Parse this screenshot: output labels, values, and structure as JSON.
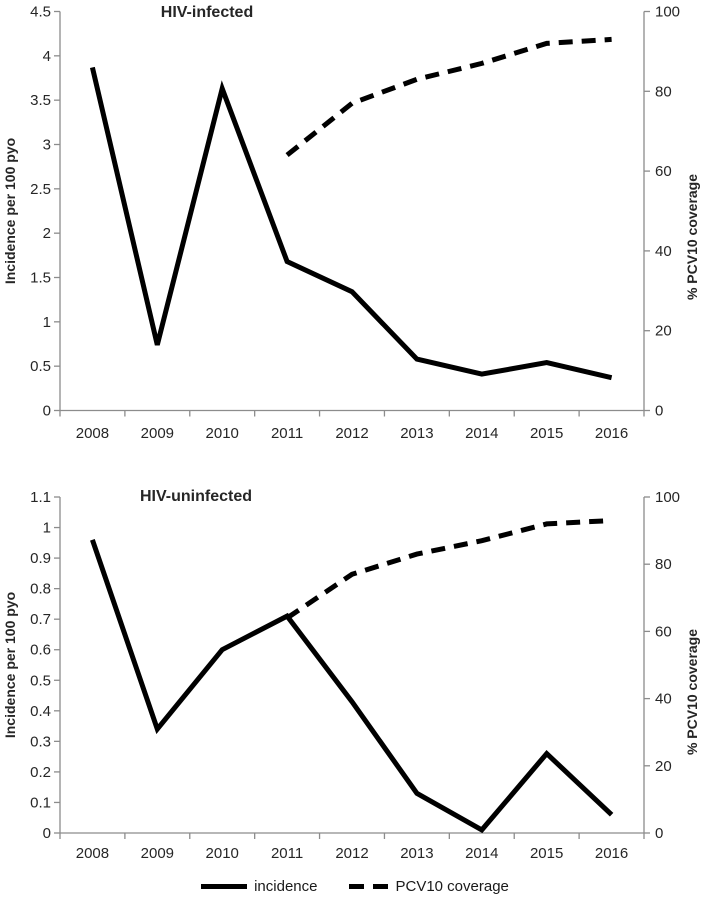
{
  "colors": {
    "series_line": "#000000",
    "axis_line": "#8c8c8c",
    "tick_text": "#262626",
    "background": "#ffffff"
  },
  "legend": {
    "items": [
      {
        "label": "incidence",
        "style": "solid"
      },
      {
        "label": "PCV10 coverage",
        "style": "dashed"
      }
    ]
  },
  "chart_data": [
    {
      "type": "line",
      "title": "HIV-infected",
      "ylabel": "Incidence per 100 pyo",
      "y2label": "% PCV10 coverage",
      "x_categories": [
        "2008",
        "2009",
        "2010",
        "2011",
        "2012",
        "2013",
        "2014",
        "2015",
        "2016"
      ],
      "y_axis": {
        "min": 0,
        "max": 4.5,
        "step": 0.5,
        "tick_labels": [
          "4.5",
          "4",
          "3.5",
          "3",
          "2.5",
          "2",
          "1.5",
          "1",
          "0.5",
          "0"
        ]
      },
      "y2_axis": {
        "min": 0,
        "max": 100,
        "step": 20,
        "tick_labels": [
          "100",
          "80",
          "60",
          "40",
          "20",
          "0"
        ]
      },
      "grid": false,
      "legend_position": "bottom-shared",
      "series": [
        {
          "name": "incidence",
          "axis": "y",
          "line": "solid",
          "values": [
            3.87,
            0.74,
            3.63,
            1.68,
            1.34,
            0.58,
            0.41,
            0.54,
            0.37
          ]
        },
        {
          "name": "PCV10 coverage",
          "axis": "y2",
          "line": "dashed",
          "values": [
            null,
            null,
            null,
            64,
            77,
            83,
            87,
            92,
            93
          ]
        }
      ]
    },
    {
      "type": "line",
      "title": "HIV-uninfected",
      "ylabel": "Incidence per 100 pyo",
      "y2label": "% PCV10 coverage",
      "x_categories": [
        "2008",
        "2009",
        "2010",
        "2011",
        "2012",
        "2013",
        "2014",
        "2015",
        "2016"
      ],
      "y_axis": {
        "min": 0,
        "max": 1.1,
        "step": 0.1,
        "tick_labels": [
          "1.1",
          "1",
          "0.9",
          "0.8",
          "0.7",
          "0.6",
          "0.5",
          "0.4",
          "0.3",
          "0.2",
          "0.1",
          "0"
        ]
      },
      "y2_axis": {
        "min": 0,
        "max": 100,
        "step": 20,
        "tick_labels": [
          "100",
          "80",
          "60",
          "40",
          "20",
          "0"
        ]
      },
      "grid": false,
      "legend_position": "bottom-shared",
      "series": [
        {
          "name": "incidence",
          "axis": "y",
          "line": "solid",
          "values": [
            0.96,
            0.34,
            0.6,
            0.71,
            0.43,
            0.13,
            0.01,
            0.26,
            0.06
          ]
        },
        {
          "name": "PCV10 coverage",
          "axis": "y2",
          "line": "dashed",
          "values": [
            null,
            null,
            null,
            64,
            77,
            83,
            87,
            92,
            93
          ]
        }
      ]
    }
  ]
}
